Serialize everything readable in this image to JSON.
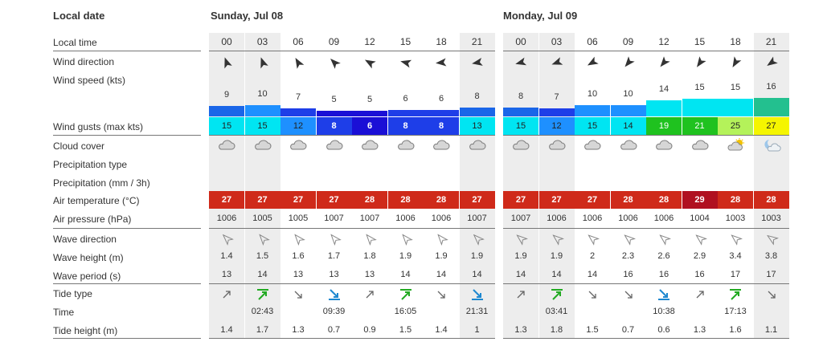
{
  "header": {
    "local_date_label": "Local date",
    "days": [
      "Sunday, Jul 08",
      "Monday, Jul 09"
    ]
  },
  "row_labels": {
    "local_time": "Local time",
    "wind_direction": "Wind direction",
    "wind_speed": "Wind speed  (kts)",
    "wind_gusts": "Wind gusts  (max kts)",
    "cloud_cover": "Cloud cover",
    "precip_type": "Precipitation type",
    "precip": "Precipitation  (mm / 3h)",
    "air_temp": "Air temperature  (°C)",
    "air_pressure": "Air pressure  (hPa)",
    "wave_direction": "Wave direction",
    "wave_height": "Wave height  (m)",
    "wave_period": "Wave period  (s)",
    "tide_type": "Tide type",
    "time": "Time",
    "tide_height": "Tide height  (m)"
  },
  "days": [
    {
      "times": [
        "00",
        "03",
        "06",
        "09",
        "12",
        "15",
        "18",
        "21"
      ],
      "wind_dir_deg": [
        -20,
        -20,
        -30,
        -45,
        -60,
        -75,
        -95,
        -100
      ],
      "wind_speed": [
        9,
        10,
        7,
        5,
        5,
        6,
        6,
        8
      ],
      "gusts": [
        15,
        15,
        12,
        8,
        6,
        8,
        8,
        13
      ],
      "clouds": [
        "cloud-icon",
        "cloud-icon",
        "cloud-icon",
        "cloud-icon",
        "cloud-icon",
        "cloud-icon",
        "cloud-icon",
        "cloud-icon"
      ],
      "temp": [
        27,
        27,
        27,
        27,
        28,
        28,
        28,
        27
      ],
      "pressure": [
        1006,
        1005,
        1005,
        1007,
        1007,
        1006,
        1006,
        1007
      ],
      "wave_dir_deg": [
        -45,
        -40,
        -40,
        -40,
        -40,
        -40,
        -40,
        -45
      ],
      "wave_height": [
        "1.4",
        "1.5",
        "1.6",
        "1.7",
        "1.8",
        "1.9",
        "1.9",
        "1.9"
      ],
      "wave_period": [
        13,
        14,
        13,
        13,
        13,
        14,
        14,
        14
      ],
      "tide_type": [
        "rising",
        "high",
        "falling",
        "low",
        "rising",
        "high",
        "falling",
        "low"
      ],
      "tide_time": [
        "",
        "02:43",
        "",
        "09:39",
        "",
        "16:05",
        "",
        "21:31"
      ],
      "tide_height": [
        "1.4",
        "1.7",
        "1.3",
        "0.7",
        "0.9",
        "1.5",
        "1.4",
        "1"
      ]
    },
    {
      "times": [
        "00",
        "03",
        "06",
        "09",
        "12",
        "15",
        "18",
        "21"
      ],
      "wind_dir_deg": [
        -105,
        -110,
        -120,
        -140,
        -140,
        -145,
        -150,
        -125
      ],
      "wind_speed": [
        8,
        7,
        10,
        10,
        14,
        15,
        15,
        16
      ],
      "gusts": [
        15,
        12,
        15,
        14,
        19,
        21,
        25,
        27
      ],
      "clouds": [
        "cloud-icon",
        "cloud-icon",
        "cloud-icon",
        "cloud-icon",
        "cloud-icon",
        "cloud-icon",
        "partly-sunny-icon",
        "partly-cloudy-night-icon"
      ],
      "temp": [
        27,
        27,
        27,
        28,
        28,
        29,
        28,
        28
      ],
      "pressure": [
        1007,
        1006,
        1006,
        1006,
        1006,
        1004,
        1003,
        1003
      ],
      "wave_dir_deg": [
        -50,
        -50,
        -50,
        -50,
        -50,
        -50,
        -50,
        -55
      ],
      "wave_height": [
        "1.9",
        "1.9",
        "2",
        "2.3",
        "2.6",
        "2.9",
        "3.4",
        "3.8"
      ],
      "wave_period": [
        14,
        14,
        14,
        16,
        16,
        16,
        17,
        17
      ],
      "tide_type": [
        "rising",
        "high",
        "falling",
        "falling",
        "low",
        "rising",
        "high",
        "falling"
      ],
      "tide_time": [
        "",
        "03:41",
        "",
        "",
        "10:38",
        "",
        "17:13",
        ""
      ],
      "tide_height": [
        "1.3",
        "1.8",
        "1.5",
        "0.7",
        "0.6",
        "1.3",
        "1.6",
        "1.1"
      ]
    }
  ],
  "colors": {
    "blue_dark": "#1a0fd6",
    "blue_mid": "#1e3ee8",
    "blue": "#1a66e8",
    "sky": "#1e90ff",
    "cyan": "#00e5f2",
    "teal": "#23c08f",
    "green": "#1fc21f",
    "lime": "#b4f25a",
    "yellow": "#f5f500",
    "temp_red": "#cf2a1a",
    "temp_dark": "#b01020",
    "tide_green": "#22aa22",
    "tide_blue": "#1e88d0"
  }
}
